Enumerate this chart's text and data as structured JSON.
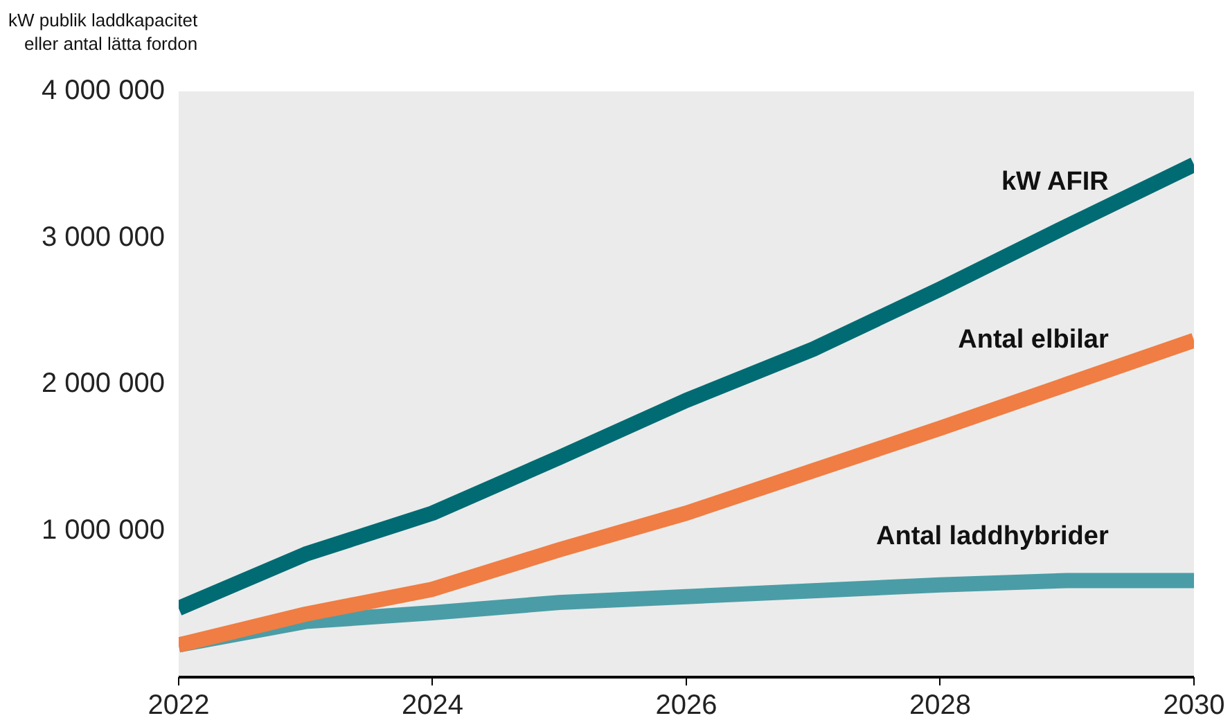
{
  "chart_data": {
    "type": "line",
    "ylabel": "kW publik laddkapacitet\neller antal lätta fordon",
    "x": [
      2022,
      2023,
      2024,
      2025,
      2026,
      2027,
      2028,
      2029,
      2030
    ],
    "xlim": [
      2022,
      2030
    ],
    "xticks": [
      2022,
      2024,
      2026,
      2028,
      2030
    ],
    "ylim": [
      0,
      4000000
    ],
    "yticks": [
      {
        "value": 1000000,
        "label": "1 000 000"
      },
      {
        "value": 2000000,
        "label": "2 000 000"
      },
      {
        "value": 3000000,
        "label": "3 000 000"
      },
      {
        "value": 4000000,
        "label": "4 000 000"
      }
    ],
    "grid": false,
    "legend": false,
    "marker": "none",
    "line_style": "solid",
    "series": [
      {
        "name": "kW AFIR",
        "color": "#006b73",
        "values": [
          470000,
          840000,
          1120000,
          1500000,
          1890000,
          2240000,
          2650000,
          3080000,
          3500000
        ]
      },
      {
        "name": "Antal elbilar",
        "color": "#f07d43",
        "values": [
          220000,
          430000,
          600000,
          870000,
          1120000,
          1410000,
          1700000,
          2000000,
          2300000
        ]
      },
      {
        "name": "Antal laddhybrider",
        "color": "#4a9da6",
        "values": [
          220000,
          380000,
          440000,
          510000,
          550000,
          590000,
          630000,
          660000,
          660000
        ]
      }
    ]
  }
}
